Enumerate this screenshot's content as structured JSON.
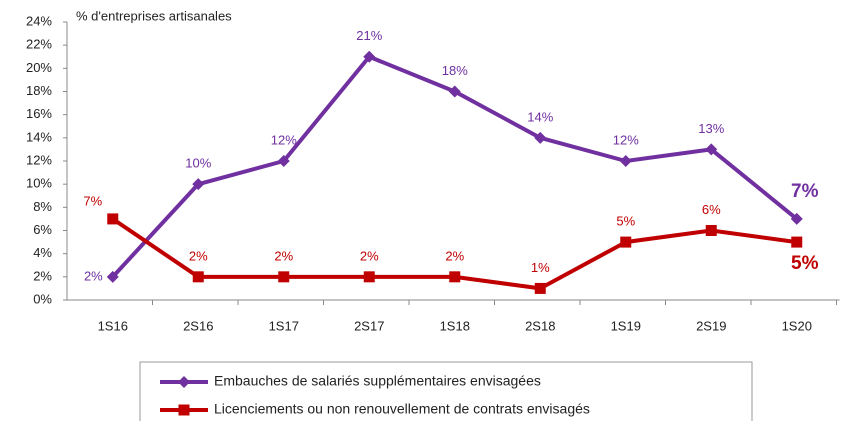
{
  "chart_data": {
    "type": "line",
    "y_axis_label": "% d'entreprises artisanales",
    "categories": [
      "1S16",
      "2S16",
      "1S17",
      "2S17",
      "1S18",
      "2S18",
      "1S19",
      "2S19",
      "1S20"
    ],
    "series": [
      {
        "name": "Embauches de salariés supplémentaires envisagées",
        "color": "#7030a0",
        "marker": "diamond",
        "values": [
          2,
          10,
          12,
          21,
          18,
          14,
          12,
          13,
          7
        ],
        "value_labels": [
          "2%",
          "10%",
          "12%",
          "21%",
          "18%",
          "14%",
          "12%",
          "13%",
          "7%"
        ]
      },
      {
        "name": "Licenciements ou non renouvellement de contrats envisagés",
        "color": "#c00000",
        "marker": "square",
        "values": [
          7,
          2,
          2,
          2,
          2,
          1,
          5,
          6,
          5
        ],
        "value_labels": [
          "7%",
          "2%",
          "2%",
          "2%",
          "2%",
          "1%",
          "5%",
          "6%",
          "5%"
        ]
      }
    ],
    "ylim": [
      0,
      24
    ],
    "yticks": [
      {
        "value": 0,
        "label": "0%"
      },
      {
        "value": 2,
        "label": "2%"
      },
      {
        "value": 4,
        "label": "4%"
      },
      {
        "value": 6,
        "label": "6%"
      },
      {
        "value": 8,
        "label": "8%"
      },
      {
        "value": 10,
        "label": "10%"
      },
      {
        "value": 12,
        "label": "12%"
      },
      {
        "value": 14,
        "label": "14%"
      },
      {
        "value": 16,
        "label": "16%"
      },
      {
        "value": 18,
        "label": "18%"
      },
      {
        "value": 20,
        "label": "20%"
      },
      {
        "value": 22,
        "label": "22%"
      },
      {
        "value": 24,
        "label": "24%"
      }
    ],
    "grid": false
  }
}
